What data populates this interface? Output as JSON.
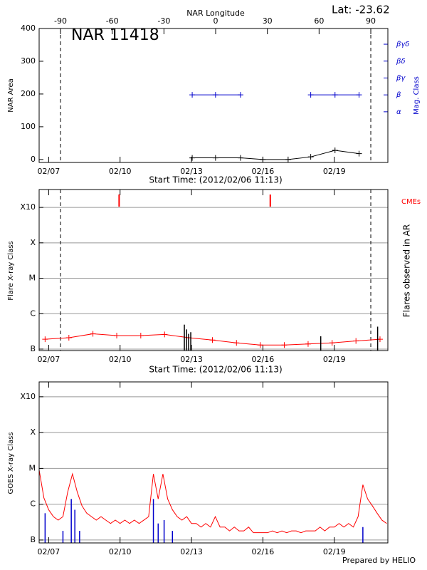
{
  "chart_data": [
    {
      "type": "line",
      "title": "NAR 11418",
      "subtitle": "Lat: -23.62",
      "x_label": "Start Time: (2012/02/06 11:13)",
      "x2_label": "NAR Longitude",
      "y_label": "NAR Area",
      "y2_label": "Mag. Class",
      "xlim": [
        6.6,
        21.25
      ],
      "xticks": [
        {
          "value": 7,
          "label": "02/07"
        },
        {
          "value": 10,
          "label": "02/10"
        },
        {
          "value": 13,
          "label": "02/13"
        },
        {
          "value": 16,
          "label": "02/16"
        },
        {
          "value": 19,
          "label": "02/19"
        }
      ],
      "x2lim": [
        -102.4,
        99.9
      ],
      "x2ticks": [
        -90,
        -60,
        -30,
        0,
        30,
        60,
        90
      ],
      "ylim": [
        -9,
        400
      ],
      "yticks": [
        0,
        100,
        200,
        300,
        400
      ],
      "y2lim": [
        -2,
        5.93
      ],
      "y2ticks": [
        {
          "value": 1,
          "label": "α"
        },
        {
          "value": 2,
          "label": "β"
        },
        {
          "value": 3,
          "label": "βγ"
        },
        {
          "value": 4,
          "label": "βδ"
        },
        {
          "value": 5,
          "label": "βγδ"
        }
      ],
      "y2color": "#0000cc",
      "limb_lines": true,
      "log": false,
      "grid": false,
      "series": [
        {
          "color": "#000000",
          "markers": true,
          "x": [
            13.03,
            14.01,
            15.06,
            16.0,
            17.06,
            18.01,
            19.03,
            20.04
          ],
          "values": [
            5,
            5,
            5,
            0,
            0,
            8,
            28,
            18
          ]
        },
        {
          "color": "#0000cc",
          "markers": true,
          "axis": "y2",
          "x": [
            13.03,
            14.01,
            15.06,
            16.0,
            17.06,
            18.01,
            19.03,
            20.04
          ],
          "values": [
            2,
            2,
            2,
            null,
            null,
            2,
            2,
            2
          ]
        }
      ]
    },
    {
      "type": "line",
      "x_label": "Start Time: (2012/02/06 11:13)",
      "y_label": "Flare X-ray Class",
      "y2_label": "Flares observed in AR",
      "xlim": [
        6.6,
        21.25
      ],
      "xticks": [
        {
          "value": 7,
          "label": "02/07"
        },
        {
          "value": 10,
          "label": "02/10"
        },
        {
          "value": 13,
          "label": "02/13"
        },
        {
          "value": 16,
          "label": "02/16"
        },
        {
          "value": 19,
          "label": "02/19"
        }
      ],
      "ylim": [
        9.1e-08,
        0.0032
      ],
      "log": true,
      "grid": true,
      "limb_lines": true,
      "yticks": [
        {
          "value": 1e-07,
          "label": "B"
        },
        {
          "value": 1e-06,
          "label": "C"
        },
        {
          "value": 1e-05,
          "label": "M"
        },
        {
          "value": 0.0001,
          "label": "X"
        },
        {
          "value": 0.001,
          "label": "X10"
        }
      ],
      "series": [
        {
          "color": "#ff0000",
          "markers": true,
          "x": [
            6.85,
            7.85,
            8.86,
            9.86,
            10.87,
            11.87,
            12.88,
            13.88,
            14.89,
            15.89,
            16.9,
            17.9,
            18.91,
            19.91,
            20.92
          ],
          "values": [
            1.9e-07,
            2.1e-07,
            2.7e-07,
            2.4e-07,
            2.4e-07,
            2.6e-07,
            2.1e-07,
            1.8e-07,
            1.5e-07,
            1.3e-07,
            1.3e-07,
            1.4e-07,
            1.5e-07,
            1.7e-07,
            1.9e-07
          ]
        },
        {
          "color": "#000000",
          "style": "spikes",
          "x": [
            12.7,
            12.79,
            12.88,
            12.97,
            18.43,
            20.82
          ],
          "values": [
            4.9e-07,
            3.6e-07,
            2.7e-07,
            3e-07,
            2.3e-07,
            4.3e-07
          ]
        }
      ],
      "cmes": {
        "label": "CMEs",
        "color": "#ff0000",
        "x": [
          9.96,
          16.31
        ]
      }
    },
    {
      "type": "line",
      "y_label": "GOES X-ray Class",
      "xlim": [
        6.6,
        21.25
      ],
      "xticks": [
        {
          "value": 7,
          "label": "02/07"
        },
        {
          "value": 10,
          "label": "02/10"
        },
        {
          "value": 13,
          "label": "02/13"
        },
        {
          "value": 16,
          "label": "02/16"
        },
        {
          "value": 19,
          "label": "02/19"
        }
      ],
      "ylim": [
        8.3e-08,
        0.0026
      ],
      "log": true,
      "grid": true,
      "limb_lines": false,
      "yticks": [
        {
          "value": 1e-07,
          "label": "B"
        },
        {
          "value": 1e-06,
          "label": "C"
        },
        {
          "value": 1e-05,
          "label": "M"
        },
        {
          "value": 0.0001,
          "label": "X"
        },
        {
          "value": 0.001,
          "label": "X10"
        }
      ],
      "series": [
        {
          "color": "#ff0000",
          "x": [
            6.6,
            6.8,
            7.0,
            7.2,
            7.4,
            7.6,
            7.8,
            8.0,
            8.2,
            8.4,
            8.6,
            8.8,
            9.0,
            9.2,
            9.4,
            9.6,
            9.8,
            10.0,
            10.2,
            10.4,
            10.6,
            10.8,
            11.0,
            11.2,
            11.4,
            11.6,
            11.8,
            12.0,
            12.2,
            12.4,
            12.6,
            12.8,
            13.0,
            13.2,
            13.4,
            13.6,
            13.8,
            14.0,
            14.2,
            14.4,
            14.6,
            14.8,
            15.0,
            15.2,
            15.4,
            15.6,
            15.8,
            16.0,
            16.2,
            16.4,
            16.6,
            16.8,
            17.0,
            17.2,
            17.4,
            17.6,
            17.8,
            18.0,
            18.2,
            18.4,
            18.6,
            18.8,
            19.0,
            19.2,
            19.4,
            19.6,
            19.8,
            20.0,
            20.2,
            20.4,
            20.6,
            20.8,
            21.0,
            21.2
          ],
          "values": [
            9e-06,
            1.5e-06,
            7e-07,
            4.5e-07,
            3.6e-07,
            4.5e-07,
            2.2e-06,
            7e-06,
            2.2e-06,
            9e-07,
            5.6e-07,
            4.5e-07,
            3.6e-07,
            4.5e-07,
            3.6e-07,
            2.9e-07,
            3.6e-07,
            2.9e-07,
            3.6e-07,
            2.9e-07,
            3.6e-07,
            2.9e-07,
            3.6e-07,
            4.5e-07,
            7e-06,
            1.4e-06,
            7e-06,
            1.4e-06,
            7e-07,
            4.5e-07,
            3.6e-07,
            4.5e-07,
            2.9e-07,
            2.9e-07,
            2.3e-07,
            2.9e-07,
            2.3e-07,
            4.5e-07,
            2.3e-07,
            2.3e-07,
            1.8e-07,
            2.3e-07,
            1.8e-07,
            1.8e-07,
            2.3e-07,
            1.6e-07,
            1.6e-07,
            1.6e-07,
            1.6e-07,
            1.8e-07,
            1.6e-07,
            1.8e-07,
            1.6e-07,
            1.8e-07,
            1.8e-07,
            1.6e-07,
            1.8e-07,
            1.8e-07,
            1.8e-07,
            2.3e-07,
            1.8e-07,
            2.3e-07,
            2.3e-07,
            2.9e-07,
            2.3e-07,
            2.9e-07,
            2.3e-07,
            4.5e-07,
            3.5e-06,
            1.4e-06,
            9e-07,
            5.6e-07,
            3.6e-07,
            2.9e-07
          ]
        },
        {
          "color": "#0000cc",
          "style": "spikes",
          "x": [
            6.85,
            7.6,
            7.95,
            8.1,
            8.3,
            11.4,
            11.6,
            11.85,
            12.2,
            20.2
          ],
          "values": [
            5.6e-07,
            1.8e-07,
            1.4e-06,
            7e-07,
            1.8e-07,
            1.4e-06,
            2.9e-07,
            3.6e-07,
            1.8e-07,
            2.3e-07
          ]
        }
      ]
    }
  ],
  "footer": "Prepared by HELIO"
}
